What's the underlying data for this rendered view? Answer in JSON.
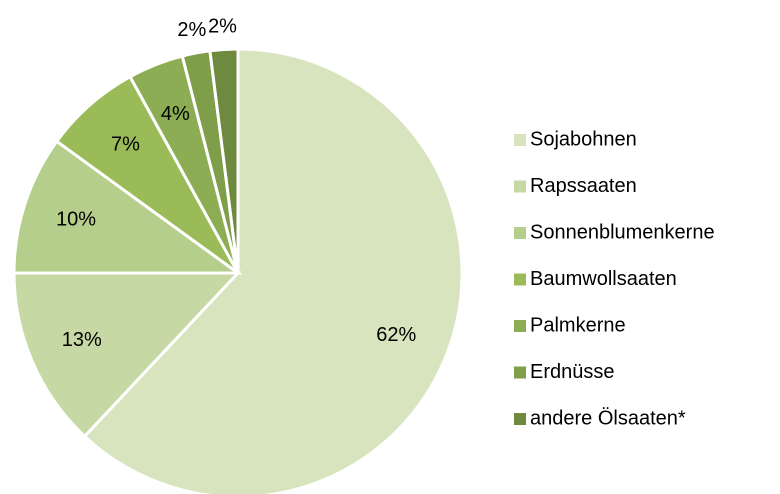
{
  "chart_data": {
    "type": "pie",
    "categories": [
      "Sojabohnen",
      "Rapssaaten",
      "Sonnenblumenkerne",
      "Baumwollsaaten",
      "Palmkerne",
      "Erdnüsse",
      "andere Ölsaaten*"
    ],
    "values": [
      62,
      13,
      10,
      7,
      4,
      2,
      2
    ],
    "value_labels": [
      "62%",
      "13%",
      "10%",
      "7%",
      "4%",
      "2%",
      "2%"
    ],
    "colors": [
      "#d7e4bd",
      "#c6d9a4",
      "#b6ce8c",
      "#9bbb59",
      "#8cad54",
      "#7f9e4a",
      "#6d8a3f"
    ],
    "legend": "right"
  }
}
